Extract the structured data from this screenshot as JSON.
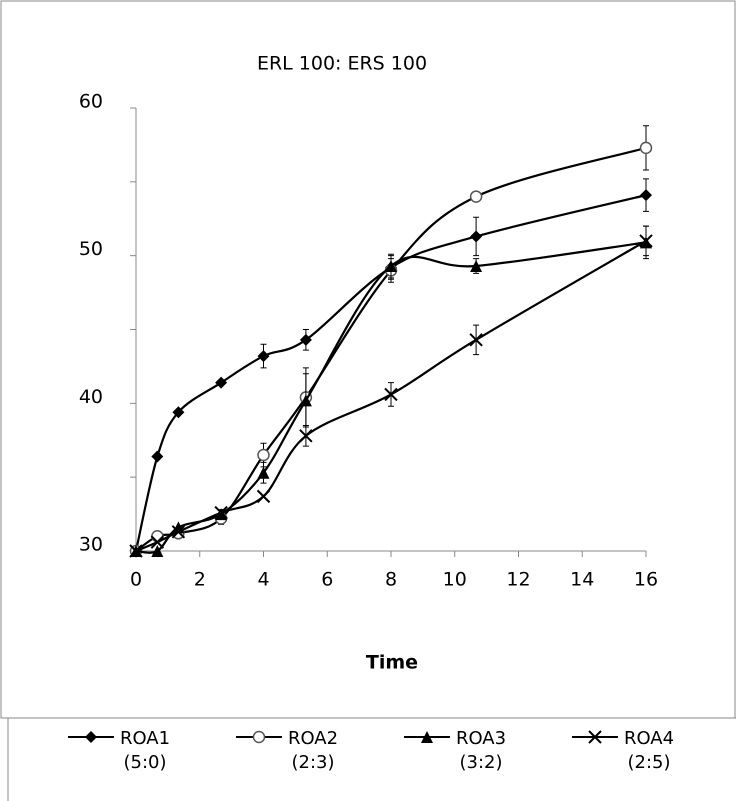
{
  "chart_data": {
    "type": "line",
    "title": "ERL 100: ERS 100",
    "x_label": "Time",
    "x": [
      0,
      0.67,
      1.33,
      2.67,
      4,
      5.33,
      8,
      10.67,
      16
    ],
    "xlim": [
      0,
      16
    ],
    "xticks": [
      0,
      2,
      4,
      6,
      8,
      10,
      12,
      14,
      16
    ],
    "ylim": [
      30,
      60
    ],
    "yticks": [
      30,
      40,
      50,
      60
    ],
    "yminorticks": [
      35,
      45,
      55
    ],
    "grid": false,
    "legend": "bottom",
    "smooth": true,
    "series": [
      {
        "name": "ROA1 (5:0)",
        "color": "#000000",
        "marker": "diamond",
        "values": [
          30,
          36.4,
          39.4,
          41.4,
          43.2,
          44.3,
          49.2,
          51.3,
          54.1
        ],
        "errors": [
          0,
          0,
          0,
          0,
          0.8,
          0.7,
          0.8,
          1.3,
          1.1
        ]
      },
      {
        "name": "ROA2 (2:3)",
        "color": "#000000",
        "marker": "circle",
        "values": [
          30,
          31.0,
          31.2,
          32.2,
          36.5,
          40.4,
          49.0,
          54.0,
          57.3
        ],
        "errors": [
          0,
          0,
          0,
          0.4,
          0.8,
          2.0,
          0.8,
          0.3,
          1.5
        ]
      },
      {
        "name": "ROA3 (3:2)",
        "color": "#000000",
        "marker": "triangle",
        "values": [
          30,
          30,
          31.6,
          32.5,
          35.3,
          40.2,
          49.3,
          49.3,
          50.9
        ],
        "errors": [
          0,
          0,
          0,
          0.3,
          0.7,
          1.8,
          0.8,
          0.5,
          1.1
        ]
      },
      {
        "name": "ROA4 (2:5)",
        "color": "#000000",
        "marker": "cross",
        "values": [
          30,
          30.6,
          31.3,
          32.6,
          33.7,
          37.8,
          40.6,
          44.3,
          51.0
        ],
        "errors": [
          0,
          0,
          0,
          0,
          0,
          0.7,
          0.8,
          1.0,
          1.0
        ]
      }
    ]
  }
}
